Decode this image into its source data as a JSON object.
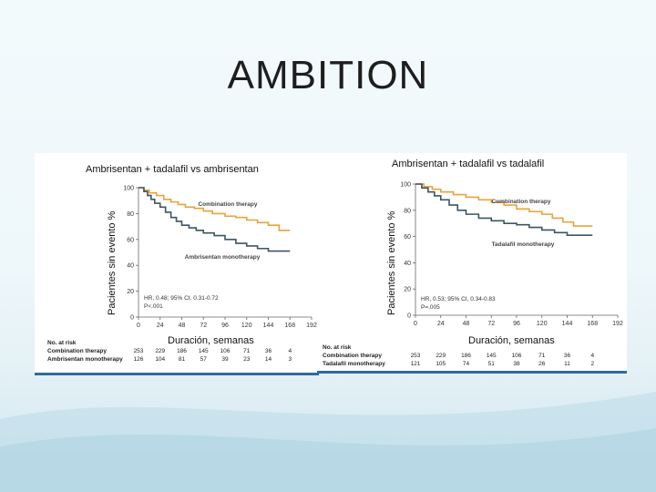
{
  "slide": {
    "title": "AMBITION",
    "colors": {
      "combination": "#e8a33c",
      "monotherapy": "#3e5563",
      "accent_border": "#2d6aa6"
    }
  },
  "chart_data": [
    {
      "type": "line",
      "subtitle": "Ambrisentan + tadalafil vs ambrisentan",
      "ylabel": "Pacientes sin evento %",
      "xlabel": "Duración, semanas",
      "xlim": [
        0,
        192
      ],
      "ylim": [
        0,
        100
      ],
      "x_ticks": [
        0,
        24,
        48,
        72,
        96,
        120,
        144,
        168,
        192
      ],
      "y_ticks": [
        0,
        20,
        40,
        60,
        80,
        100
      ],
      "series": [
        {
          "name": "Combination therapy",
          "color": "#e8a33c",
          "x": [
            0,
            6,
            12,
            20,
            28,
            36,
            44,
            52,
            62,
            72,
            82,
            96,
            108,
            120,
            132,
            144,
            156,
            168
          ],
          "y": [
            100,
            98,
            96,
            94,
            91,
            89,
            87,
            85,
            84,
            82,
            80,
            78,
            77,
            75,
            73,
            71,
            67,
            67
          ]
        },
        {
          "name": "Ambrisentan monotherapy",
          "color": "#3e5563",
          "x": [
            0,
            6,
            10,
            14,
            18,
            24,
            30,
            36,
            42,
            48,
            56,
            64,
            72,
            84,
            96,
            108,
            120,
            132,
            144,
            168
          ],
          "y": [
            100,
            97,
            94,
            91,
            88,
            85,
            81,
            77,
            74,
            71,
            69,
            67,
            65,
            63,
            60,
            57,
            55,
            53,
            51,
            51
          ]
        }
      ],
      "stats": [
        "HR, 0.48; 95% CI, 0.31-0.72",
        "P<.001"
      ],
      "risk_table": {
        "header": "No. at risk",
        "rows": [
          {
            "label": "Combination therapy",
            "values": [
              "253",
              "229",
              "186",
              "145",
              "106",
              "71",
              "36",
              "4"
            ]
          },
          {
            "label": "Ambrisentan monotherapy",
            "values": [
              "126",
              "104",
              "81",
              "57",
              "39",
              "23",
              "14",
              "3"
            ]
          }
        ]
      }
    },
    {
      "type": "line",
      "subtitle": "Ambrisentan + tadalafil vs tadalafil",
      "ylabel": "Pacientes sin evento %",
      "xlabel": "Duración, semanas",
      "xlim": [
        0,
        192
      ],
      "ylim": [
        0,
        100
      ],
      "x_ticks": [
        0,
        24,
        48,
        72,
        96,
        120,
        144,
        168,
        192
      ],
      "y_ticks": [
        0,
        20,
        40,
        60,
        80,
        100
      ],
      "series": [
        {
          "name": "Combination therapy",
          "color": "#e8a33c",
          "x": [
            0,
            8,
            16,
            24,
            36,
            48,
            60,
            72,
            84,
            96,
            108,
            120,
            130,
            140,
            150,
            168
          ],
          "y": [
            100,
            98,
            96,
            94,
            92,
            90,
            88,
            86,
            84,
            81,
            79,
            77,
            74,
            71,
            68,
            68
          ]
        },
        {
          "name": "Tadalafil monotherapy",
          "color": "#3e5563",
          "x": [
            0,
            6,
            12,
            18,
            24,
            32,
            40,
            48,
            60,
            72,
            84,
            96,
            108,
            120,
            132,
            144,
            168
          ],
          "y": [
            100,
            97,
            94,
            91,
            88,
            84,
            80,
            77,
            74,
            72,
            70,
            69,
            67,
            65,
            63,
            61,
            61
          ]
        }
      ],
      "stats": [
        "HR, 0.53; 95% CI, 0.34-0.83",
        "P=.005"
      ],
      "risk_table": {
        "header": "No. at risk",
        "rows": [
          {
            "label": "Combination therapy",
            "values": [
              "253",
              "229",
              "186",
              "145",
              "106",
              "71",
              "36",
              "4"
            ]
          },
          {
            "label": "Tadalafil monotherapy",
            "values": [
              "121",
              "105",
              "74",
              "51",
              "38",
              "26",
              "11",
              "2"
            ]
          }
        ]
      }
    }
  ]
}
